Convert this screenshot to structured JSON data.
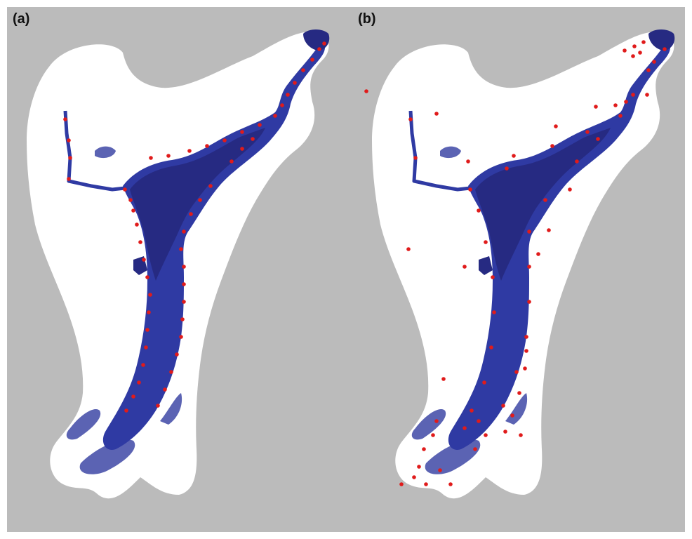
{
  "panels": [
    {
      "label": "(a)"
    },
    {
      "label": "(b)"
    }
  ],
  "colors": {
    "background": "#bbbbbb",
    "land": "#ffffff",
    "deep_water": "#262a82",
    "mid_water": "#2f3aa3",
    "shallow_water": "#5b63b3",
    "points": "#e01b1b"
  }
}
